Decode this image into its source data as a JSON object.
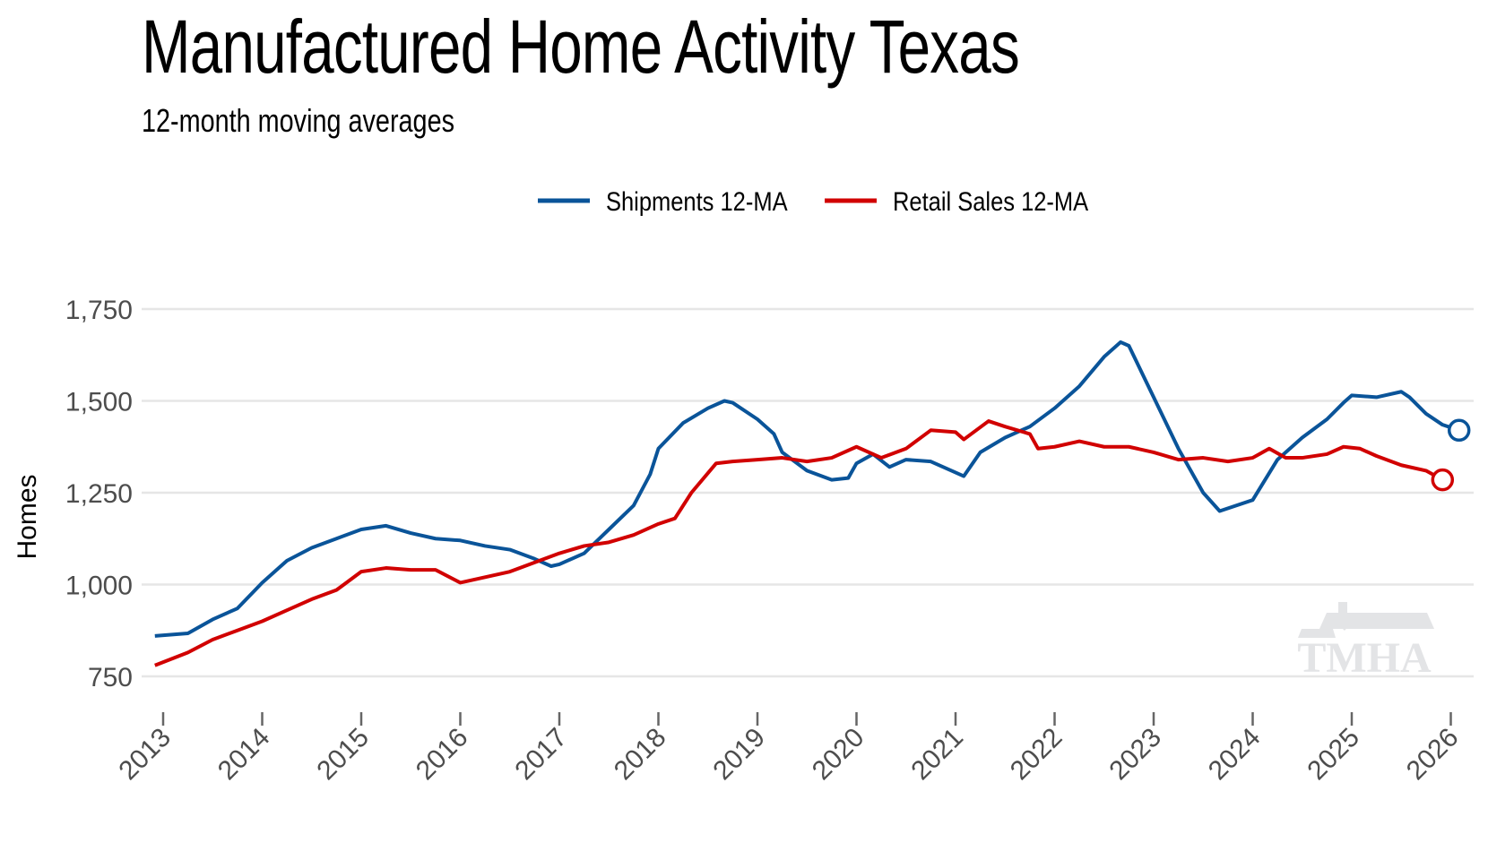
{
  "chart_data": {
    "type": "line",
    "title": "Manufactured Home Activity Texas",
    "subtitle": "12-month moving averages",
    "xlabel": "",
    "ylabel": "Homes",
    "xlim": [
      "2012-11",
      "2026-03"
    ],
    "ylim": [
      740,
      1790
    ],
    "yticks": [
      750,
      1000,
      1250,
      1500,
      1750
    ],
    "ytick_labels": [
      "750",
      "1,000",
      "1,250",
      "1,500",
      "1,750"
    ],
    "xticks": [
      "2013",
      "2014",
      "2015",
      "2016",
      "2017",
      "2018",
      "2019",
      "2020",
      "2021",
      "2022",
      "2023",
      "2024",
      "2025",
      "2026"
    ],
    "grid": "horizontal",
    "legend_position": "top",
    "watermark": "TMHA",
    "series": [
      {
        "name": "Shipments 12-MA",
        "color": "#0a5499",
        "end_marker": "open-circle",
        "points": [
          [
            "2012-12",
            860
          ],
          [
            "2013-04",
            867
          ],
          [
            "2013-07",
            905
          ],
          [
            "2013-10",
            935
          ],
          [
            "2014-01",
            1005
          ],
          [
            "2014-04",
            1065
          ],
          [
            "2014-07",
            1100
          ],
          [
            "2014-10",
            1125
          ],
          [
            "2015-01",
            1150
          ],
          [
            "2015-04",
            1160
          ],
          [
            "2015-07",
            1140
          ],
          [
            "2015-10",
            1125
          ],
          [
            "2016-01",
            1120
          ],
          [
            "2016-04",
            1105
          ],
          [
            "2016-07",
            1095
          ],
          [
            "2016-10",
            1070
          ],
          [
            "2016-12",
            1050
          ],
          [
            "2017-01",
            1055
          ],
          [
            "2017-04",
            1085
          ],
          [
            "2017-07",
            1150
          ],
          [
            "2017-10",
            1215
          ],
          [
            "2017-12",
            1300
          ],
          [
            "2018-01",
            1370
          ],
          [
            "2018-04",
            1440
          ],
          [
            "2018-07",
            1480
          ],
          [
            "2018-09",
            1500
          ],
          [
            "2018-10",
            1495
          ],
          [
            "2019-01",
            1450
          ],
          [
            "2019-03",
            1410
          ],
          [
            "2019-04",
            1360
          ],
          [
            "2019-07",
            1310
          ],
          [
            "2019-10",
            1285
          ],
          [
            "2019-12",
            1290
          ],
          [
            "2020-01",
            1330
          ],
          [
            "2020-03",
            1355
          ],
          [
            "2020-05",
            1320
          ],
          [
            "2020-07",
            1340
          ],
          [
            "2020-10",
            1335
          ],
          [
            "2021-01",
            1305
          ],
          [
            "2021-02",
            1295
          ],
          [
            "2021-04",
            1360
          ],
          [
            "2021-07",
            1400
          ],
          [
            "2021-10",
            1430
          ],
          [
            "2022-01",
            1480
          ],
          [
            "2022-04",
            1540
          ],
          [
            "2022-07",
            1620
          ],
          [
            "2022-09",
            1660
          ],
          [
            "2022-10",
            1650
          ],
          [
            "2023-01",
            1510
          ],
          [
            "2023-04",
            1370
          ],
          [
            "2023-07",
            1250
          ],
          [
            "2023-09",
            1200
          ],
          [
            "2024-01",
            1230
          ],
          [
            "2024-04",
            1340
          ],
          [
            "2024-07",
            1400
          ],
          [
            "2024-10",
            1450
          ],
          [
            "2024-12",
            1495
          ],
          [
            "2025-01",
            1515
          ],
          [
            "2025-04",
            1510
          ],
          [
            "2025-07",
            1525
          ],
          [
            "2025-08",
            1510
          ],
          [
            "2025-10",
            1465
          ],
          [
            "2025-12",
            1435
          ],
          [
            "2026-02",
            1420
          ]
        ]
      },
      {
        "name": "Retail Sales 12-MA",
        "color": "#d10000",
        "end_marker": "open-circle",
        "points": [
          [
            "2012-12",
            780
          ],
          [
            "2013-04",
            815
          ],
          [
            "2013-07",
            850
          ],
          [
            "2013-10",
            875
          ],
          [
            "2014-01",
            900
          ],
          [
            "2014-04",
            930
          ],
          [
            "2014-07",
            960
          ],
          [
            "2014-10",
            985
          ],
          [
            "2015-01",
            1035
          ],
          [
            "2015-04",
            1045
          ],
          [
            "2015-07",
            1040
          ],
          [
            "2015-10",
            1040
          ],
          [
            "2016-01",
            1005
          ],
          [
            "2016-04",
            1020
          ],
          [
            "2016-07",
            1035
          ],
          [
            "2016-10",
            1060
          ],
          [
            "2017-01",
            1085
          ],
          [
            "2017-04",
            1105
          ],
          [
            "2017-07",
            1115
          ],
          [
            "2017-10",
            1135
          ],
          [
            "2018-01",
            1165
          ],
          [
            "2018-03",
            1180
          ],
          [
            "2018-05",
            1250
          ],
          [
            "2018-08",
            1330
          ],
          [
            "2018-10",
            1335
          ],
          [
            "2019-01",
            1340
          ],
          [
            "2019-04",
            1345
          ],
          [
            "2019-07",
            1335
          ],
          [
            "2019-10",
            1345
          ],
          [
            "2020-01",
            1375
          ],
          [
            "2020-04",
            1345
          ],
          [
            "2020-07",
            1370
          ],
          [
            "2020-10",
            1420
          ],
          [
            "2021-01",
            1415
          ],
          [
            "2021-02",
            1395
          ],
          [
            "2021-05",
            1445
          ],
          [
            "2021-07",
            1430
          ],
          [
            "2021-10",
            1410
          ],
          [
            "2021-11",
            1370
          ],
          [
            "2022-01",
            1375
          ],
          [
            "2022-04",
            1390
          ],
          [
            "2022-07",
            1375
          ],
          [
            "2022-10",
            1375
          ],
          [
            "2023-01",
            1360
          ],
          [
            "2023-04",
            1340
          ],
          [
            "2023-07",
            1345
          ],
          [
            "2023-10",
            1335
          ],
          [
            "2024-01",
            1345
          ],
          [
            "2024-03",
            1370
          ],
          [
            "2024-05",
            1345
          ],
          [
            "2024-07",
            1345
          ],
          [
            "2024-10",
            1355
          ],
          [
            "2024-12",
            1375
          ],
          [
            "2025-02",
            1370
          ],
          [
            "2025-04",
            1350
          ],
          [
            "2025-07",
            1325
          ],
          [
            "2025-10",
            1310
          ],
          [
            "2025-12",
            1285
          ]
        ]
      }
    ]
  }
}
